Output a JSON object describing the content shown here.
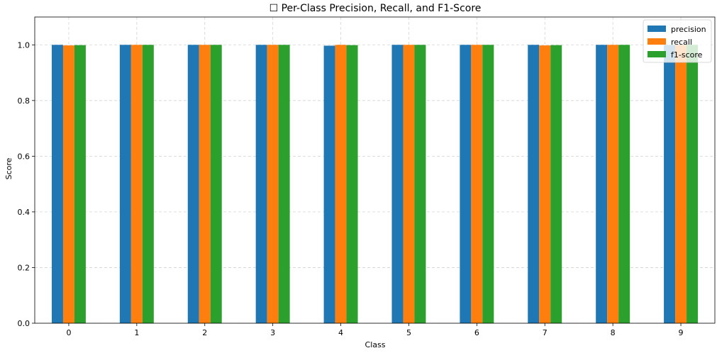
{
  "chart_data": {
    "type": "bar",
    "title": "☐ Per-Class Precision, Recall, and F1-Score",
    "xlabel": "Class",
    "ylabel": "Score",
    "categories": [
      "0",
      "1",
      "2",
      "3",
      "4",
      "5",
      "6",
      "7",
      "8",
      "9"
    ],
    "ylim": [
      0,
      1.1
    ],
    "yticks": [
      "0.0",
      "0.2",
      "0.4",
      "0.6",
      "0.8",
      "1.0"
    ],
    "grid": true,
    "legend_position": "top-right",
    "series": [
      {
        "name": "precision",
        "color": "#1f77b4",
        "values": [
          1.0,
          1.0,
          1.0,
          1.0,
          0.997,
          1.0,
          1.0,
          1.0,
          1.0,
          1.0
        ]
      },
      {
        "name": "recall",
        "color": "#ff7f0e",
        "values": [
          0.998,
          1.0,
          1.0,
          1.0,
          1.0,
          1.0,
          1.0,
          0.998,
          1.0,
          1.0
        ]
      },
      {
        "name": "f1-score",
        "color": "#2ca02c",
        "values": [
          0.999,
          1.0,
          1.0,
          1.0,
          0.999,
          1.0,
          1.0,
          0.999,
          1.0,
          1.0
        ]
      }
    ]
  }
}
